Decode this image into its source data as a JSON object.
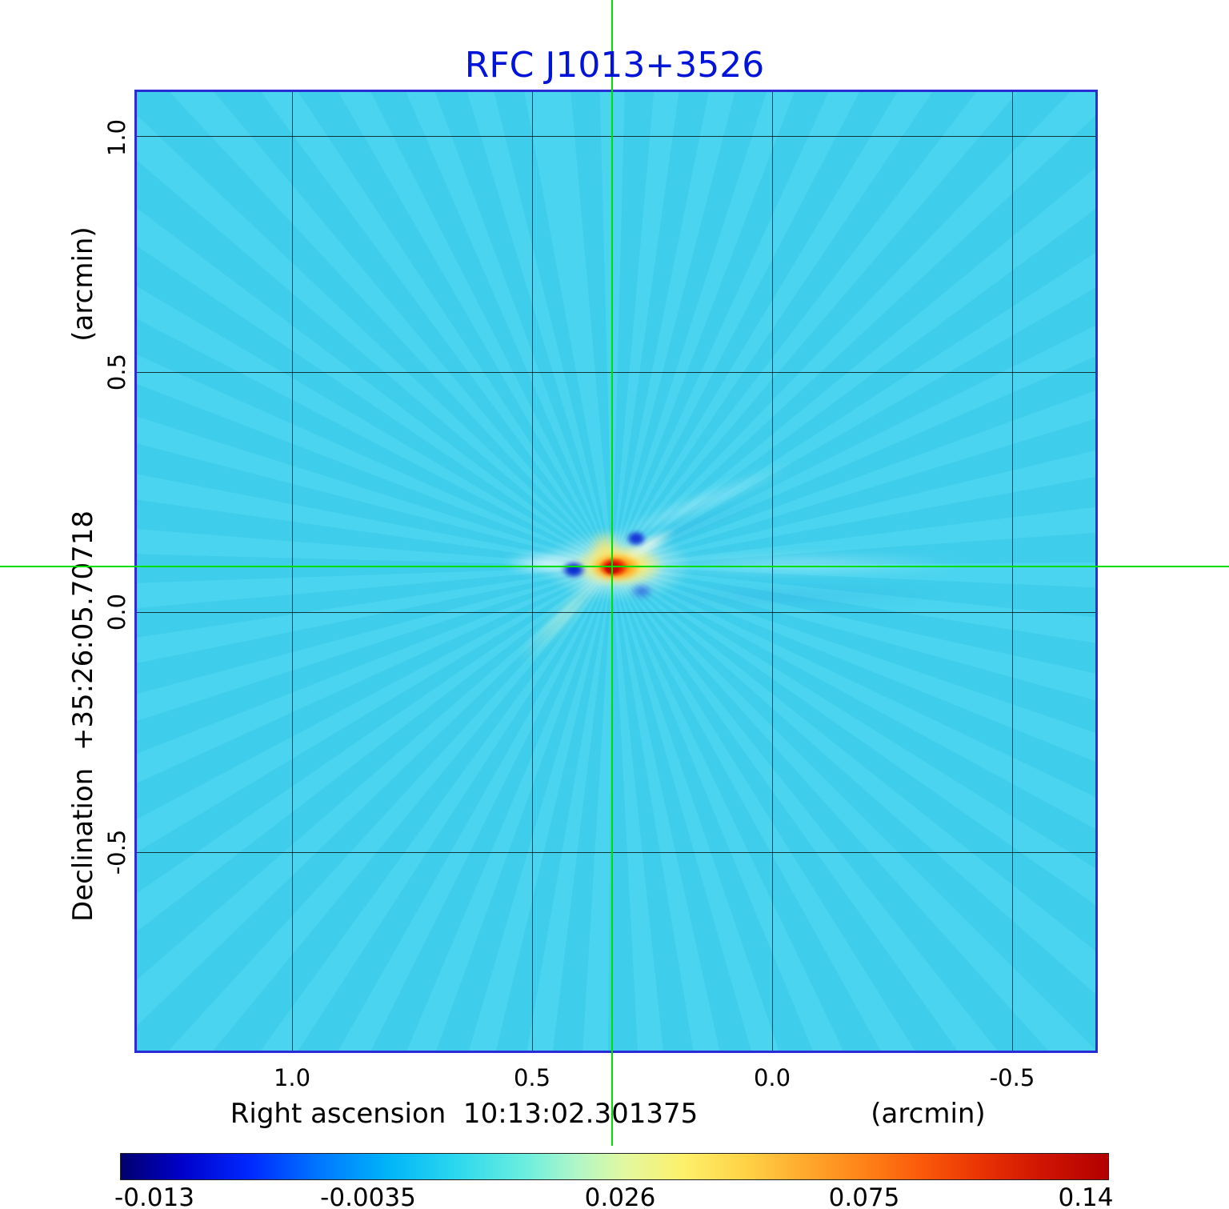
{
  "title": "RFC J1013+3526",
  "x_axis": {
    "label": "Right ascension  10:13:02.301375",
    "unit": "(arcmin)",
    "ticks": [
      "1.0",
      "0.5",
      "0.0",
      "-0.5"
    ]
  },
  "y_axis": {
    "label": "Declination  +35:26:05.70718",
    "unit": "(arcmin)",
    "ticks": [
      "1.0",
      "0.5",
      "0.0",
      "-0.5"
    ]
  },
  "colorbar": {
    "ticks": [
      "-0.013",
      "-0.0035",
      "0.026",
      "0.075",
      "0.14"
    ]
  },
  "colors": {
    "title_blue": "#0013d8",
    "plot_border_blue": "#2b2bd5",
    "field_background_cyan": "#40d2ee",
    "crosshair_green": "#00df00",
    "grid_black": "#000000",
    "peak_red": "#c00d00"
  },
  "chart_data": {
    "type": "heatmap",
    "title": "RFC J1013+3526",
    "xlabel": "Right ascension 10:13:02.301375 (arcmin)",
    "ylabel": "Declination +35:26:05.70718 (arcmin)",
    "x_ticks": [
      1.0,
      0.5,
      0.0,
      -0.5
    ],
    "y_ticks": [
      1.0,
      0.5,
      0.0,
      -0.5
    ],
    "x_range_arcmin": [
      1.33,
      -0.68
    ],
    "y_range_arcmin": [
      1.1,
      -0.94
    ],
    "colormap": "jet",
    "value_range": [
      -0.013,
      0.14
    ],
    "colorbar_ticks": [
      -0.013,
      -0.0035,
      0.026,
      0.075,
      0.14
    ],
    "background_value": 0.005,
    "crosshair_arcmin": {
      "ra_offset": 0.33,
      "dec_offset": 0.09
    },
    "peak": {
      "ra_offset_arcmin": 0.33,
      "dec_offset_arcmin": 0.09,
      "value": 0.14
    },
    "features": [
      {
        "name": "compact-core",
        "ra_offset_arcmin": 0.33,
        "dec_offset_arcmin": 0.09,
        "value": 0.14,
        "color": "red-orange-yellow with white halo"
      },
      {
        "name": "negative-sidelobe-left-of-core",
        "ra_offset_arcmin": 0.42,
        "dec_offset_arcmin": 0.09,
        "value": -0.013
      },
      {
        "name": "negative-sidelobe-upper-right-of-core",
        "ra_offset_arcmin": 0.29,
        "dec_offset_arcmin": 0.15,
        "value": -0.013
      },
      {
        "name": "negative-sidelobe-lower-right-of-core",
        "ra_offset_arcmin": 0.27,
        "dec_offset_arcmin": 0.03,
        "value": -0.009
      },
      {
        "name": "diffraction-rays",
        "description": "faint light/dark radial streaks across the uniform cyan field, centered on the core; brighter streak extending toward the right edge"
      }
    ]
  }
}
